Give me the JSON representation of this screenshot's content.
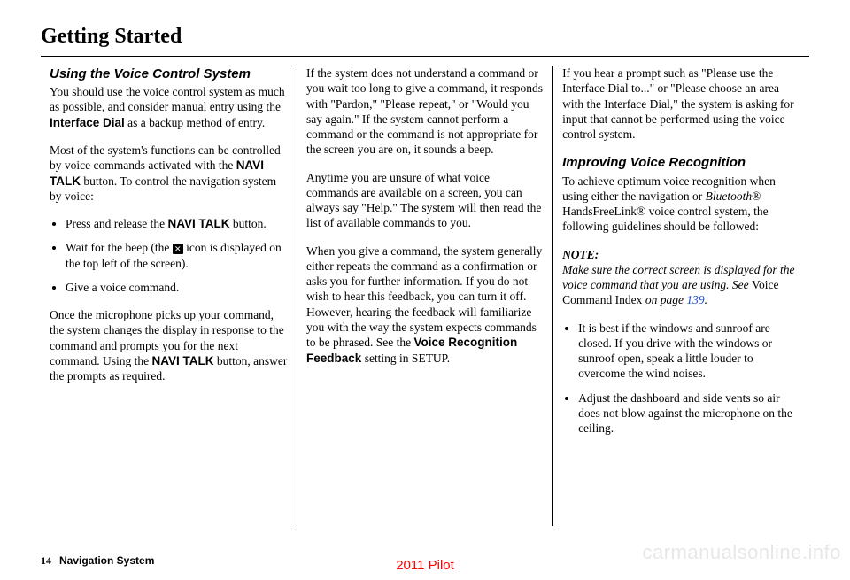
{
  "header": {
    "title": "Getting Started"
  },
  "col1": {
    "heading": "Using the Voice Control System",
    "p1a": "You should use the voice control system as much as possible, and consider manual entry using the ",
    "p1b": "Interface Dial",
    "p1c": " as a backup method of entry.",
    "p2a": "Most of the system's functions can be controlled by voice commands activated with the ",
    "p2b": "NAVI TALK",
    "p2c": " button. To control the navigation system by voice:",
    "b1a": "Press and release the ",
    "b1b": "NAVI TALK",
    "b1c": " button.",
    "b2a": "Wait for the beep (the ",
    "b2b": " icon is displayed on the top left of the screen).",
    "b3": "Give a voice command.",
    "p3a": "Once the microphone picks up your command, the system changes the display in response to the command and prompts you for the next command. Using the ",
    "p3b": "NAVI TALK",
    "p3c": " button, answer the prompts as required."
  },
  "col2": {
    "p1": "If the system does not understand a command or you wait too long to give a command, it responds with \"Pardon,\" \"Please repeat,\" or \"Would you say again.\" If the system cannot perform a command or the command is not appropriate for the screen you are on, it sounds a beep.",
    "p2": "Anytime you are unsure of what voice commands are available on a screen, you can always say \"Help.\" The system will then read the list of available commands to you.",
    "p3a": "When you give a command, the system generally either repeats the command as a confirmation or asks you for further information. If you do not wish to hear this feedback, you can turn it off. However, hearing the feedback will familiarize you with the way the system expects commands to be phrased. See the ",
    "p3b": "Voice Recognition Feedback",
    "p3c": " setting in SETUP."
  },
  "col3": {
    "p1": "If you hear a prompt such as \"Please use the Interface Dial to...\" or \"Please choose an area with the Interface Dial,\" the system is asking for input that cannot be performed using the voice control system.",
    "heading": "Improving Voice Recognition",
    "p2a": "To achieve optimum voice recognition when using either the navigation or ",
    "p2b": "Bluetooth",
    "p2c": "® HandsFreeLink® voice control system, the following guidelines should be followed:",
    "note_label": "NOTE:",
    "note_a": "Make sure the correct screen is displayed for the voice command that you are using. See ",
    "note_b": "Voice Command Index",
    "note_c": " on page ",
    "note_link": "139",
    "note_d": ".",
    "b1": "It is best if the windows and sunroof are closed. If you drive with the windows or sunroof open, speak a little louder to overcome the wind noises.",
    "b2": "Adjust the dashboard and side vents so air does not blow against the microphone on the ceiling."
  },
  "footer": {
    "page": "14",
    "label": "Navigation System"
  },
  "vehicle": "2011 Pilot",
  "watermark": "carmanualsonline.info",
  "icon_glyph": "✕"
}
